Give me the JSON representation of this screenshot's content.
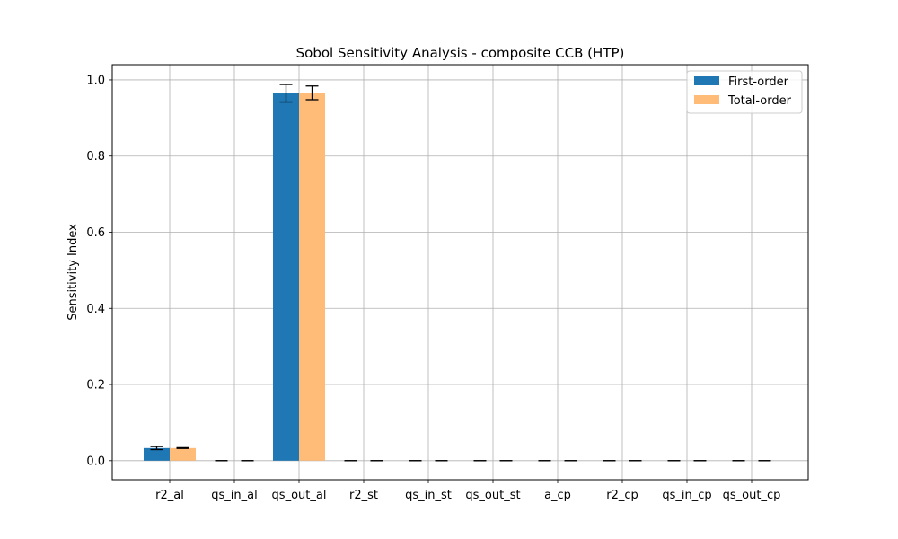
{
  "chart_data": {
    "type": "bar",
    "title": "Sobol Sensitivity Analysis - composite CCB (HTP)",
    "xlabel": "",
    "ylabel": "Sensitivity Index",
    "categories": [
      "r2_al",
      "qs_in_al",
      "qs_out_al",
      "r2_st",
      "qs_in_st",
      "qs_out_st",
      "a_cp",
      "r2_cp",
      "qs_in_cp",
      "qs_out_cp"
    ],
    "series": [
      {
        "name": "First-order",
        "color": "#1f77b4",
        "values": [
          0.033,
          0.0,
          0.965,
          0.0,
          0.0,
          0.0,
          0.0,
          0.0,
          0.0,
          0.0
        ],
        "errors": [
          0.004,
          0.0,
          0.023,
          0.0,
          0.0,
          0.0,
          0.0,
          0.0,
          0.0,
          0.0
        ]
      },
      {
        "name": "Total-order",
        "color": "#ffbb78",
        "values": [
          0.033,
          0.0,
          0.966,
          0.0,
          0.0,
          0.0,
          0.0,
          0.0,
          0.0,
          0.0
        ],
        "errors": [
          0.001,
          0.0,
          0.018,
          0.0,
          0.0,
          0.0,
          0.0,
          0.0,
          0.0,
          0.0
        ]
      }
    ],
    "yticks": [
      "0.0",
      "0.2",
      "0.4",
      "0.6",
      "0.8",
      "1.0"
    ],
    "ylim": [
      -0.05,
      1.04
    ],
    "grid": true,
    "legend_position": "top-right"
  }
}
